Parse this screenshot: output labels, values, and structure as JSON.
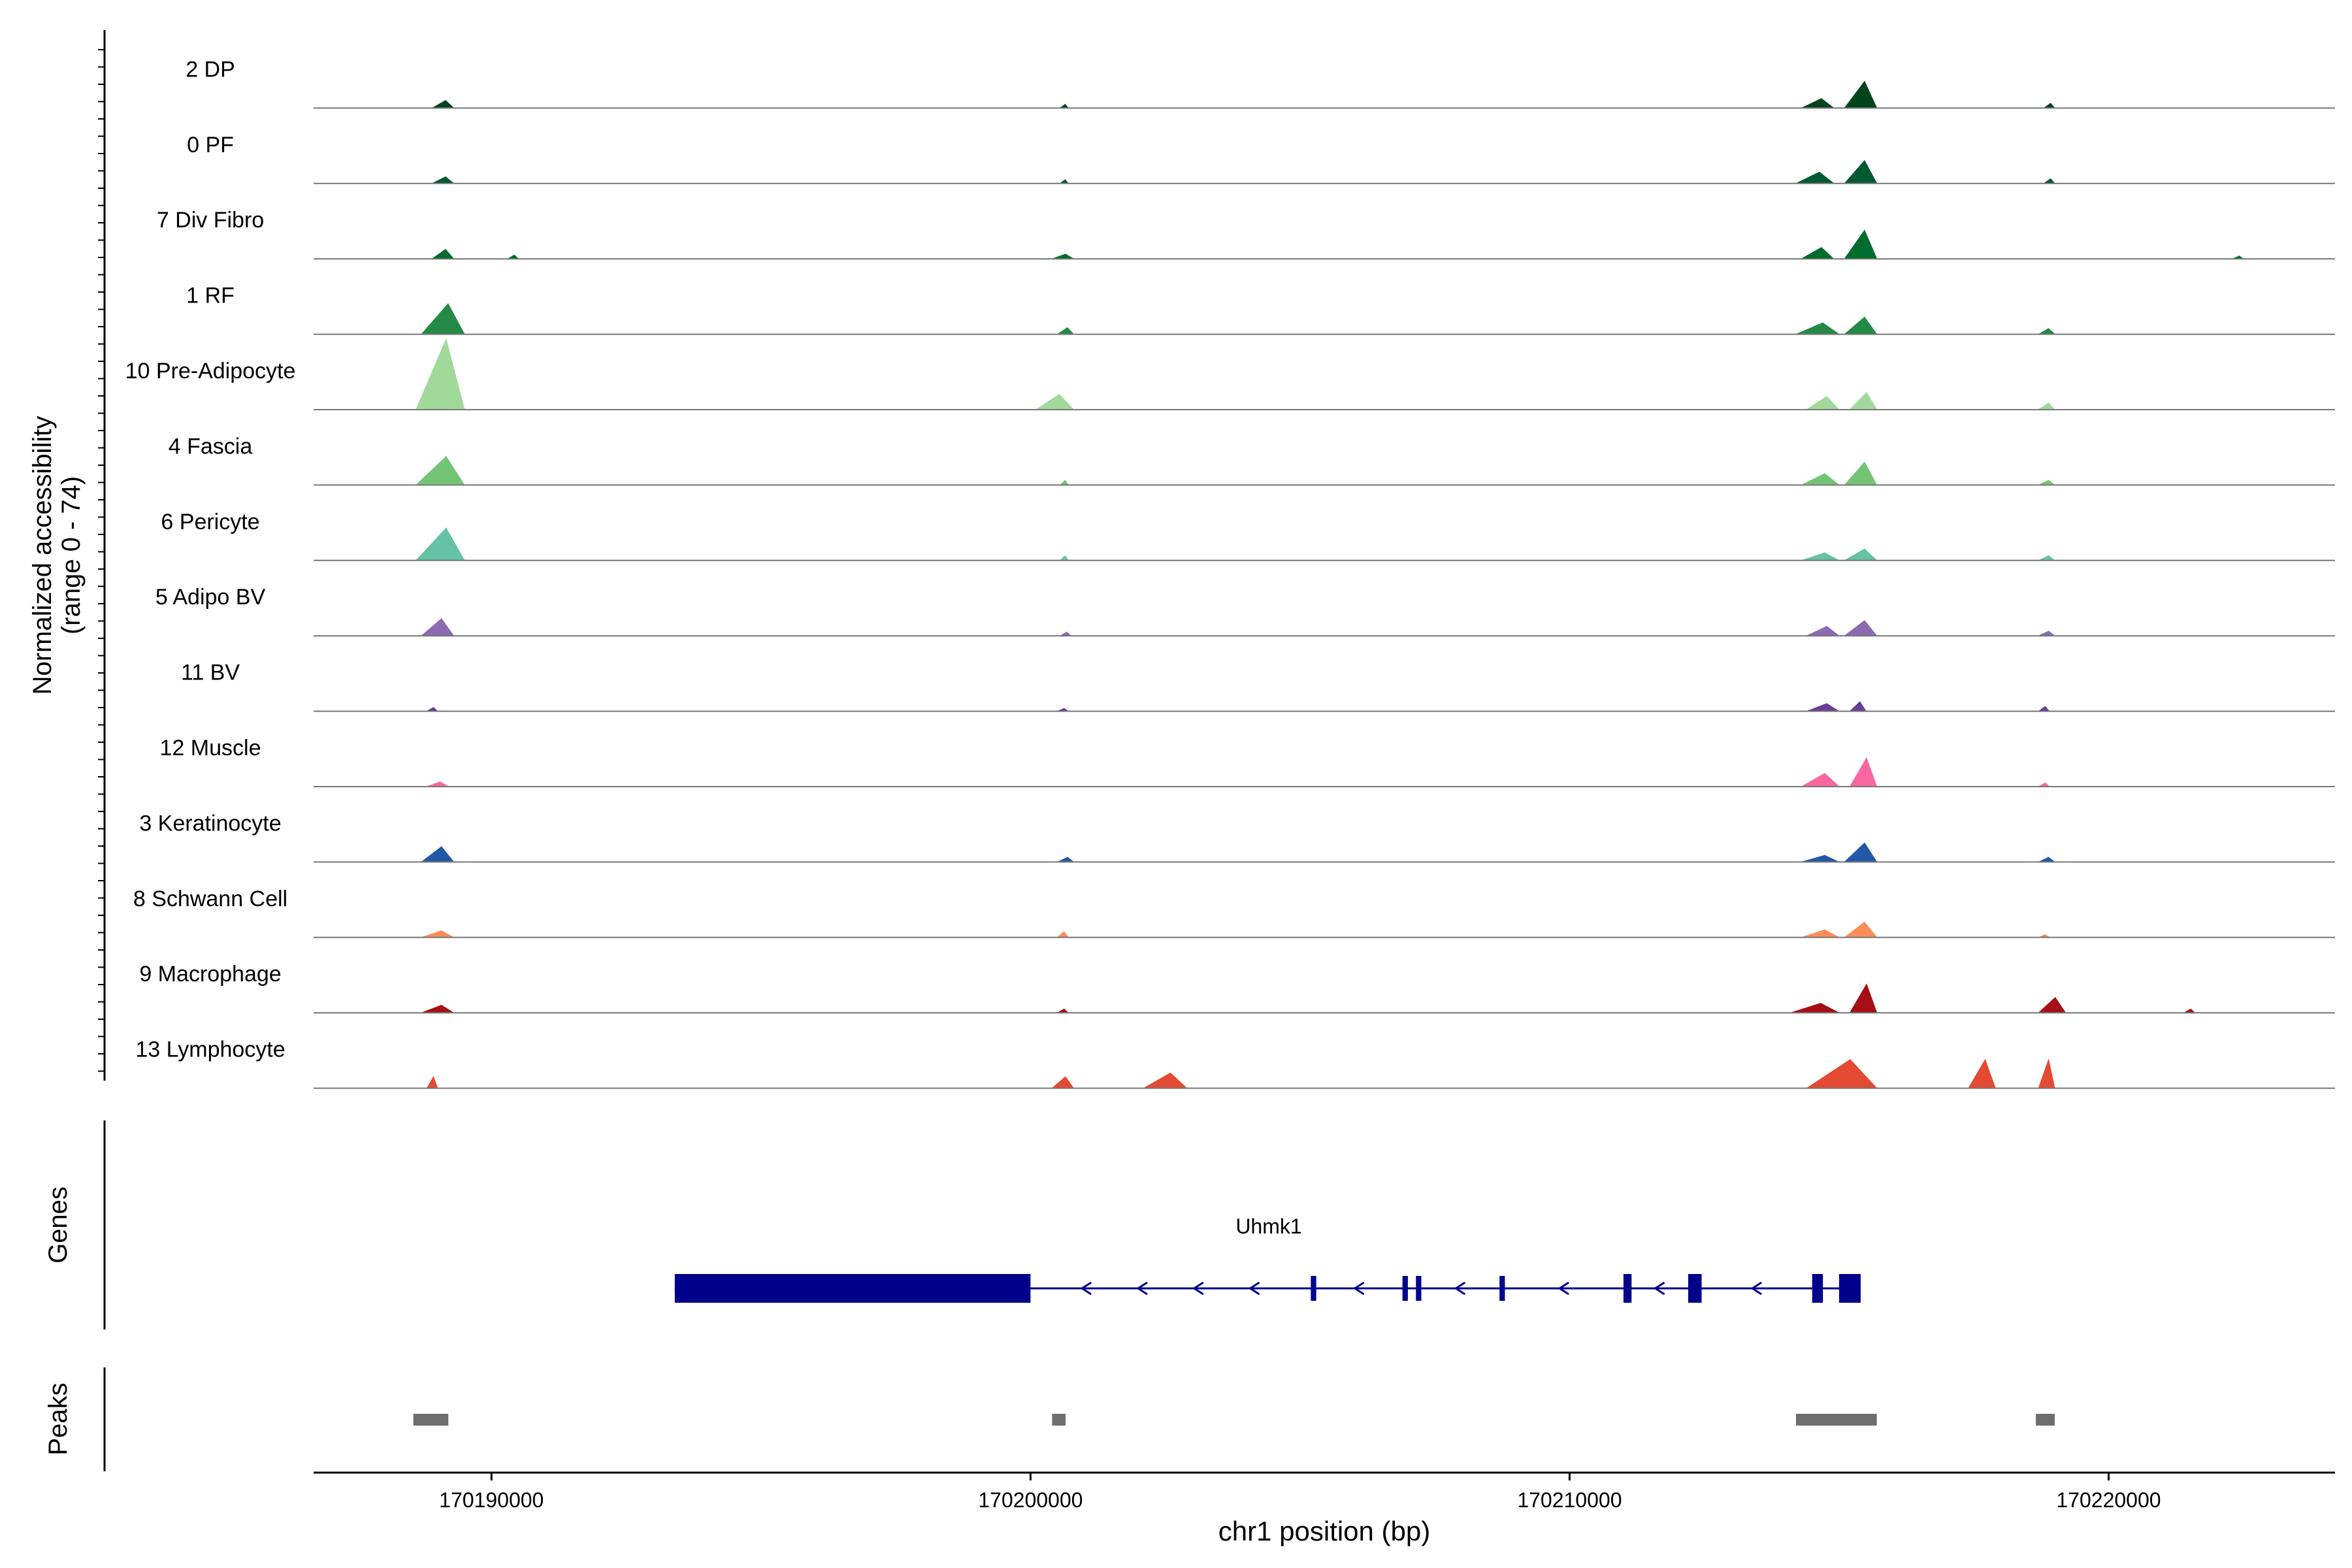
{
  "chart_data": {
    "type": "area",
    "ylabel": "Normalized accessibility",
    "ylabel_range": "(range 0 - 74)",
    "ylim": [
      0,
      74
    ],
    "xlabel": "chr1 position (bp)",
    "xlim": [
      170186700,
      170224200
    ],
    "x_ticks": [
      170190000,
      170200000,
      170210000,
      170220000
    ],
    "x_tick_labels": [
      "170190000",
      "170200000",
      "170210000",
      "170220000"
    ],
    "tracks": [
      {
        "name": "2 DP",
        "color": "#00441b",
        "peaks": [
          [
            170188900,
            170189300,
            8
          ],
          [
            170200550,
            170200700,
            4
          ],
          [
            170214300,
            170214900,
            10
          ],
          [
            170215100,
            170215700,
            28
          ],
          [
            170218800,
            170219000,
            5
          ]
        ]
      },
      {
        "name": "0 PF",
        "color": "#005a32",
        "peaks": [
          [
            170188900,
            170189300,
            7
          ],
          [
            170200550,
            170200700,
            4
          ],
          [
            170214200,
            170214900,
            12
          ],
          [
            170215100,
            170215700,
            24
          ],
          [
            170218800,
            170219000,
            5
          ]
        ]
      },
      {
        "name": "7 Div Fibro",
        "color": "#006d2c",
        "peaks": [
          [
            170188900,
            170189300,
            10
          ],
          [
            170190300,
            170190500,
            4
          ],
          [
            170200400,
            170200800,
            5
          ],
          [
            170214300,
            170214900,
            12
          ],
          [
            170215100,
            170215700,
            30
          ],
          [
            170222300,
            170222500,
            3
          ]
        ]
      },
      {
        "name": "1 RF",
        "color": "#238b45",
        "peaks": [
          [
            170188700,
            170189500,
            32
          ],
          [
            170200500,
            170200800,
            7
          ],
          [
            170214200,
            170215000,
            12
          ],
          [
            170215100,
            170215700,
            18
          ],
          [
            170218700,
            170219000,
            6
          ]
        ]
      },
      {
        "name": "10 Pre-Adipocyte",
        "color": "#a1d99b",
        "peaks": [
          [
            170188600,
            170189500,
            74
          ],
          [
            170200100,
            170200800,
            16
          ],
          [
            170214400,
            170215000,
            14
          ],
          [
            170215200,
            170215700,
            18
          ],
          [
            170218700,
            170219000,
            7
          ]
        ]
      },
      {
        "name": "4 Fascia",
        "color": "#74c476",
        "peaks": [
          [
            170188600,
            170189500,
            30
          ],
          [
            170200550,
            170200700,
            5
          ],
          [
            170214300,
            170215000,
            12
          ],
          [
            170215100,
            170215700,
            24
          ],
          [
            170218700,
            170219000,
            5
          ]
        ]
      },
      {
        "name": "6 Pericyte",
        "color": "#66c2a4",
        "peaks": [
          [
            170188600,
            170189500,
            34
          ],
          [
            170200550,
            170200700,
            5
          ],
          [
            170214300,
            170215000,
            8
          ],
          [
            170215100,
            170215700,
            12
          ],
          [
            170218700,
            170219000,
            5
          ]
        ]
      },
      {
        "name": "5 Adipo BV",
        "color": "#8c6bb1",
        "peaks": [
          [
            170188700,
            170189300,
            18
          ],
          [
            170200550,
            170200750,
            4
          ],
          [
            170214400,
            170215000,
            10
          ],
          [
            170215100,
            170215700,
            16
          ],
          [
            170218700,
            170219000,
            5
          ]
        ]
      },
      {
        "name": "11 BV",
        "color": "#6a3d9a",
        "peaks": [
          [
            170188800,
            170189000,
            4
          ],
          [
            170200500,
            170200700,
            3
          ],
          [
            170214400,
            170215000,
            8
          ],
          [
            170215200,
            170215500,
            10
          ],
          [
            170218700,
            170218900,
            5
          ]
        ]
      },
      {
        "name": "12 Muscle",
        "color": "#f768a1",
        "peaks": [
          [
            170188800,
            170189200,
            5
          ],
          [
            170214300,
            170215000,
            14
          ],
          [
            170215200,
            170215700,
            30
          ],
          [
            170218700,
            170218900,
            4
          ]
        ]
      },
      {
        "name": "3 Keratinocyte",
        "color": "#2158a8",
        "peaks": [
          [
            170188700,
            170189300,
            16
          ],
          [
            170200500,
            170200800,
            5
          ],
          [
            170214300,
            170215000,
            7
          ],
          [
            170215100,
            170215700,
            20
          ],
          [
            170218700,
            170219000,
            5
          ]
        ]
      },
      {
        "name": "8 Schwann Cell",
        "color": "#fc8d59",
        "peaks": [
          [
            170188700,
            170189300,
            7
          ],
          [
            170200500,
            170200700,
            6
          ],
          [
            170214300,
            170215000,
            8
          ],
          [
            170215100,
            170215700,
            16
          ],
          [
            170218700,
            170218900,
            3
          ]
        ]
      },
      {
        "name": "9 Macrophage",
        "color": "#a50f15",
        "peaks": [
          [
            170188700,
            170189300,
            8
          ],
          [
            170200500,
            170200700,
            4
          ],
          [
            170214100,
            170215000,
            10
          ],
          [
            170215200,
            170215700,
            30
          ],
          [
            170218700,
            170219200,
            16
          ],
          [
            170221400,
            170221600,
            4
          ]
        ]
      },
      {
        "name": "13 Lymphocyte",
        "color": "#e34a33",
        "peaks": [
          [
            170188800,
            170189000,
            12
          ],
          [
            170200400,
            170200800,
            12
          ],
          [
            170202100,
            170202900,
            16
          ],
          [
            170214400,
            170215700,
            30
          ],
          [
            170217400,
            170217900,
            30
          ],
          [
            170218700,
            170219000,
            30
          ]
        ]
      }
    ],
    "genes": {
      "label": "Genes",
      "name": "Uhmk1",
      "color": "#00008b",
      "start": 170193400,
      "end": 170215400,
      "strand": "-",
      "exons": [
        [
          170193400,
          170200000
        ],
        [
          170205200,
          170205300
        ],
        [
          170206900,
          170207000
        ],
        [
          170207150,
          170207250
        ],
        [
          170208700,
          170208800
        ],
        [
          170211000,
          170211150
        ],
        [
          170212200,
          170212450
        ],
        [
          170214500,
          170214700
        ],
        [
          170215000,
          170215400
        ]
      ]
    },
    "peaks_track": {
      "label": "Peaks",
      "color": "#6e6e6e",
      "regions": [
        [
          170188550,
          170189200
        ],
        [
          170200400,
          170200650
        ],
        [
          170214200,
          170215700
        ],
        [
          170218650,
          170219000
        ]
      ]
    }
  }
}
